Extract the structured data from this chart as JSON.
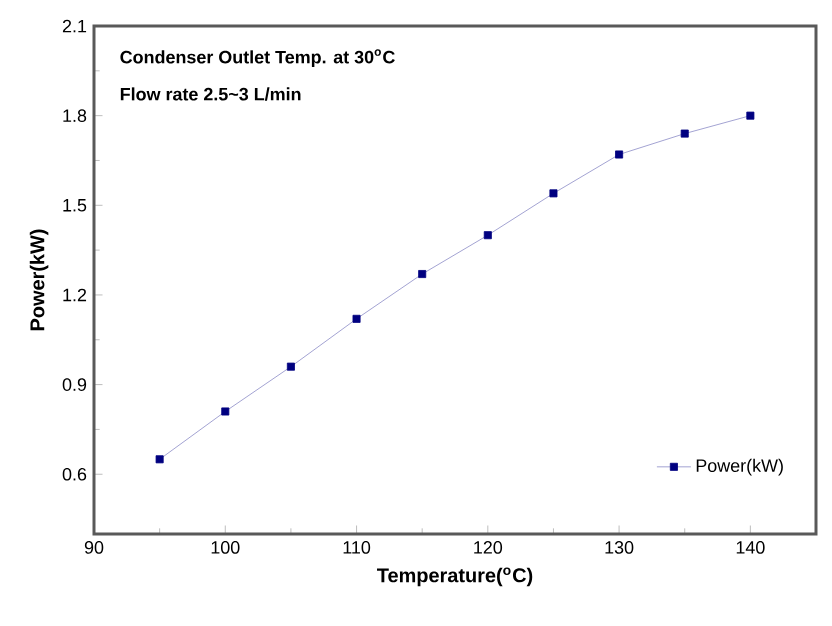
{
  "chart_data": {
    "type": "line",
    "xlabel": "Temperature($^{o}$C)",
    "ylabel": "Power(kW)",
    "annotations": [
      "Condenser Outlet Temp. at 30$^{o}$C",
      "Flow rate 2.5~3 L/min"
    ],
    "x": [
      95,
      100,
      105,
      110,
      115,
      120,
      125,
      130,
      135,
      140
    ],
    "series": [
      {
        "name": "Power(kW)",
        "color": "#000080",
        "values": [
          0.65,
          0.81,
          0.96,
          1.12,
          1.27,
          1.4,
          1.54,
          1.67,
          1.74,
          1.8
        ]
      }
    ],
    "xlim": [
      90,
      145
    ],
    "ylim": [
      0.4,
      2.1
    ],
    "xticks": [
      90,
      100,
      110,
      120,
      130,
      140
    ],
    "yticks": [
      0.6,
      0.9,
      1.2,
      1.5,
      1.8,
      2.1
    ],
    "grid": false,
    "legend": "bottom right",
    "marker": "square",
    "line_style": "solid"
  }
}
